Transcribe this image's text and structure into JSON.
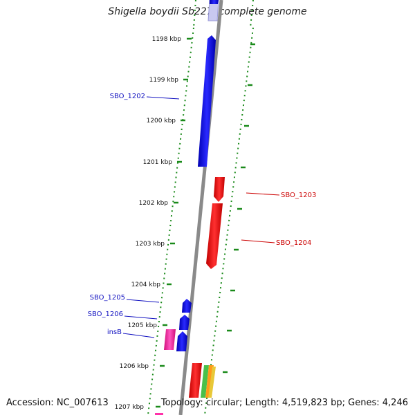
{
  "title": "Shigella boydii Sb227, complete genome",
  "footer": {
    "accession": "Accession: NC_007613",
    "summary": "Topology: circular; Length: 4,519,823 bp; Genes: 4,246"
  },
  "ticks": [
    "1198 kbp",
    "1199 kbp",
    "1200 kbp",
    "1201 kbp",
    "1202 kbp",
    "1203 kbp",
    "1204 kbp",
    "1205 kbp",
    "1206 kbp",
    "1207 kbp"
  ],
  "gene_labels": {
    "left": [
      "SBO_1202",
      "SBO_1205",
      "SBO_1206",
      "insB"
    ],
    "right": [
      "SBO_1203",
      "SBO_1204"
    ]
  },
  "colors": {
    "backbone": "#8a8a8a",
    "forward_gene": "#1414e6",
    "reverse_gene": "#ee1111",
    "mobile_element": "#ff33aa",
    "tick_marks": "#1a8a1a",
    "left_label": "#1010c0",
    "right_label": "#cc0000"
  }
}
